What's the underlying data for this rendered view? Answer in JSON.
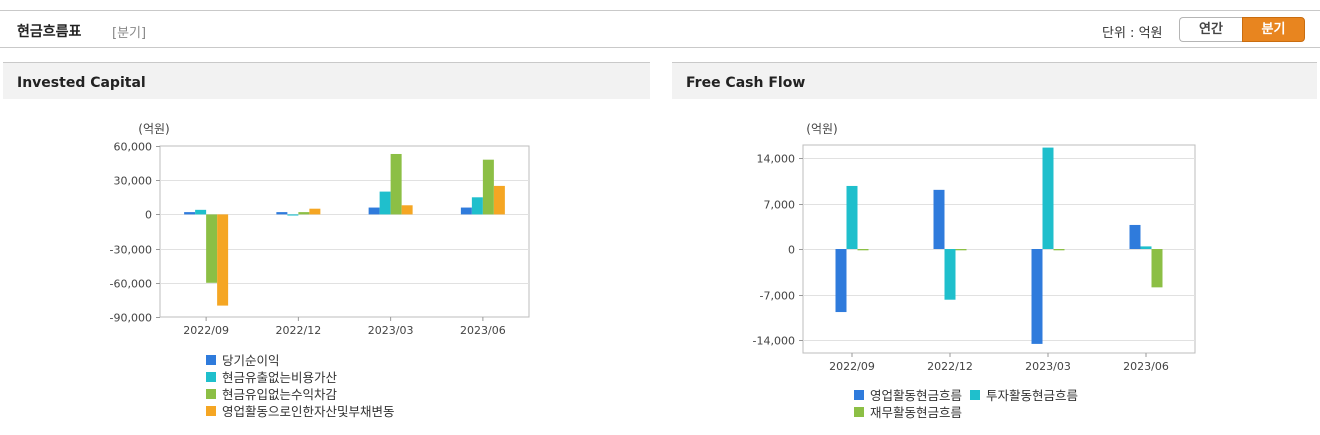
{
  "header": {
    "title": "현금흐름표",
    "period": "[분기]",
    "unit": "단위 : 억원",
    "toggle_annual": "연간",
    "toggle_quarter": "분기"
  },
  "colors": {
    "series1": "#2f7bdc",
    "series2": "#1fbfcc",
    "series3": "#8cbf45",
    "series4": "#f5a623",
    "toggle_active": "#e8851f"
  },
  "panels": {
    "left_title": "Invested Capital",
    "right_title": "Free Cash Flow"
  },
  "chart_data": [
    {
      "type": "bar",
      "title": "Invested Capital",
      "ylabel": "(억원)",
      "categories": [
        "2022/09",
        "2022/12",
        "2023/03",
        "2023/06"
      ],
      "ylim": [
        -90000,
        60000
      ],
      "yticks": [
        60000,
        30000,
        0,
        -30000,
        -60000,
        -90000
      ],
      "ytick_labels": [
        "60,000",
        "30,000",
        "0",
        "-30,000",
        "-60,000",
        "-90,000"
      ],
      "series": [
        {
          "name": "당기순이익",
          "color": "#2f7bdc",
          "values": [
            2000,
            2000,
            6000,
            6000
          ]
        },
        {
          "name": "현금유출없는비용가산",
          "color": "#1fbfcc",
          "values": [
            4000,
            -1000,
            20000,
            15000
          ]
        },
        {
          "name": "현금유입없는수익차감",
          "color": "#8cbf45",
          "values": [
            -60000,
            2000,
            53000,
            48000
          ]
        },
        {
          "name": "영업활동으로인한자산및부채변동",
          "color": "#f5a623",
          "values": [
            -80000,
            5000,
            8000,
            25000
          ]
        }
      ]
    },
    {
      "type": "bar",
      "title": "Free Cash Flow",
      "ylabel": "(억원)",
      "categories": [
        "2022/09",
        "2022/12",
        "2023/03",
        "2023/06"
      ],
      "ylim": [
        -16000,
        16000
      ],
      "yticks": [
        14000,
        7000,
        0,
        -7000,
        -14000
      ],
      "ytick_labels": [
        "14,000",
        "7,000",
        "0",
        "-7,000",
        "-14,000"
      ],
      "series": [
        {
          "name": "영업활동현금흐름",
          "color": "#2f7bdc",
          "values": [
            -9700,
            9100,
            -14600,
            3700
          ]
        },
        {
          "name": "투자활동현금흐름",
          "color": "#1fbfcc",
          "values": [
            9700,
            -7800,
            15600,
            400
          ]
        },
        {
          "name": "재무활동현금흐름",
          "color": "#8cbf45",
          "values": [
            -200,
            -200,
            -200,
            -5900
          ]
        }
      ]
    }
  ]
}
